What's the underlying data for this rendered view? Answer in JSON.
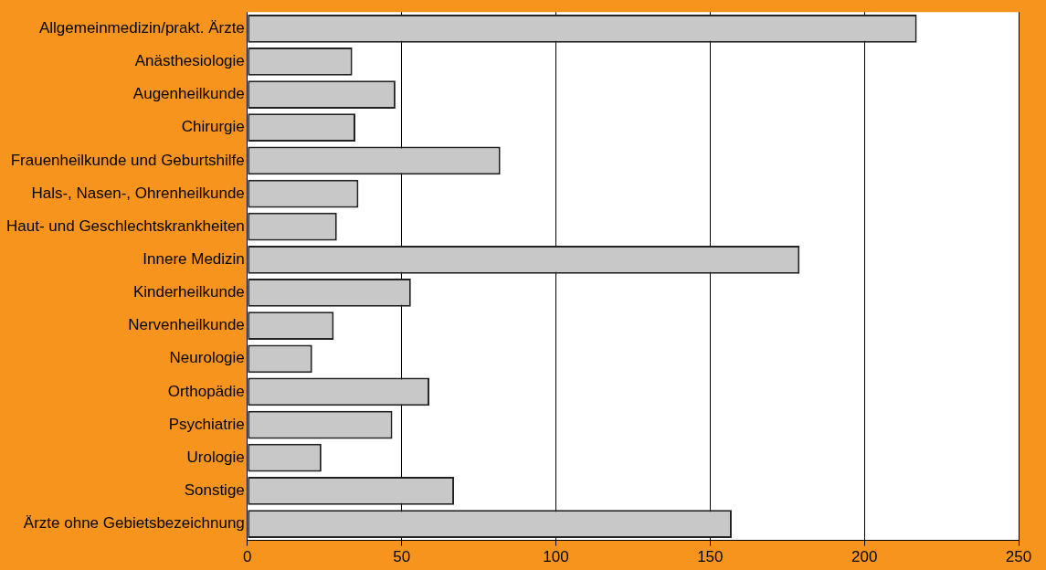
{
  "chart_data": {
    "type": "bar",
    "orientation": "horizontal",
    "categories": [
      "Allgemeinmedizin/prakt. Ärzte",
      "Anästhesiologie",
      "Augenheilkunde",
      "Chirurgie",
      "Frauenheilkunde und Geburtshilfe",
      "Hals-, Nasen-, Ohrenheilkunde",
      "Haut- und Geschlechtskrankheiten",
      "Innere Medizin",
      "Kinderheilkunde",
      "Nervenheilkunde",
      "Neurologie",
      "Orthopädie",
      "Psychiatrie",
      "Urologie",
      "Sonstige",
      "Ärzte ohne Gebietsbezeichnung"
    ],
    "values": [
      217,
      34,
      48,
      35,
      82,
      36,
      29,
      179,
      53,
      28,
      21,
      59,
      47,
      24,
      67,
      157
    ],
    "color": "#c8c8c8",
    "xlim": [
      0,
      250
    ],
    "xticks": [
      0,
      50,
      100,
      150,
      200,
      250
    ],
    "grid": "x",
    "legend": false
  }
}
